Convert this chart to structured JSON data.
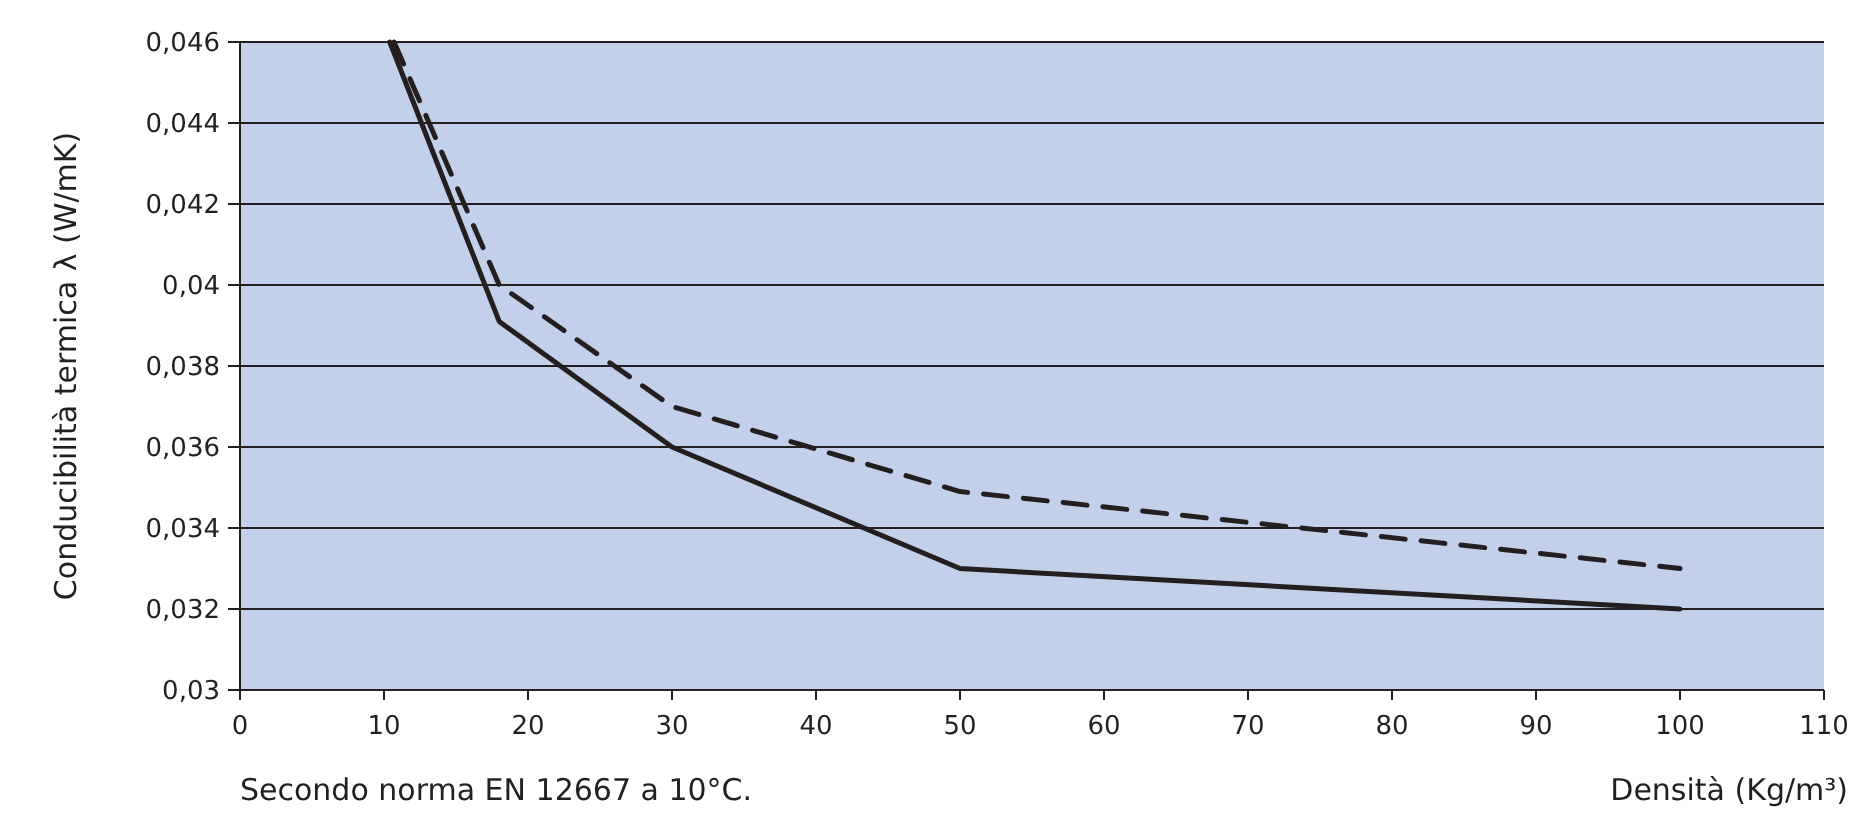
{
  "chart_data": {
    "type": "line",
    "xlabel": "Densità (Kg/m³)",
    "ylabel": "Conducibilità termica λ (W/mK)",
    "annotations": [
      "Secondo norma EN 12667 a 10°C."
    ],
    "xlim": [
      0,
      110
    ],
    "xticks": [
      0,
      10,
      20,
      30,
      40,
      50,
      60,
      70,
      80,
      90,
      100,
      110
    ],
    "ylim": [
      0.03,
      0.046
    ],
    "yticks": [
      {
        "value": 0.03,
        "label": "0,03"
      },
      {
        "value": 0.032,
        "label": "0,032"
      },
      {
        "value": 0.034,
        "label": "0,034"
      },
      {
        "value": 0.036,
        "label": "0,036"
      },
      {
        "value": 0.038,
        "label": "0,038"
      },
      {
        "value": 0.04,
        "label": "0,04"
      },
      {
        "value": 0.042,
        "label": "0,042"
      },
      {
        "value": 0.044,
        "label": "0,044"
      },
      {
        "value": 0.046,
        "label": "0,046"
      }
    ],
    "grid": "y",
    "marker": "none",
    "series": [
      {
        "color": "#231f20",
        "line_style": "solid",
        "x": [
          10.4,
          18,
          30,
          50,
          100
        ],
        "values": [
          0.046,
          0.0391,
          0.036,
          0.033,
          0.032
        ]
      },
      {
        "color": "#231f20",
        "line_style": "dashed",
        "x": [
          10.7,
          18,
          30,
          50,
          100
        ],
        "values": [
          0.046,
          0.04,
          0.037,
          0.0349,
          0.033
        ]
      }
    ]
  }
}
